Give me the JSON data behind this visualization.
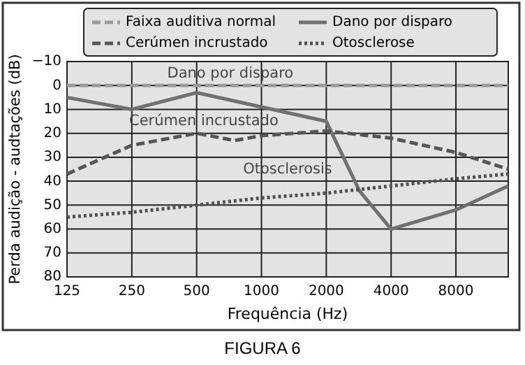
{
  "chart_data": {
    "type": "line",
    "title": "FIGURA 6",
    "xlabel": "Frequência (Hz)",
    "ylabel": "Perda audição - audtações (dB)",
    "log": "x",
    "xlim": [
      125,
      14000
    ],
    "xticks": [
      125,
      250,
      500,
      1000,
      2000,
      4000,
      8000
    ],
    "ylim": [
      80,
      -10
    ],
    "yticks": [
      -10,
      0,
      10,
      20,
      30,
      40,
      50,
      60,
      70,
      80
    ],
    "grid": true,
    "legend": "top",
    "marker": "none",
    "series": [
      {
        "name": "Faixa auditiva normal",
        "color": "#9a9a9a",
        "line_style": "dashed",
        "x": [
          125,
          14000
        ],
        "values": [
          0,
          0
        ]
      },
      {
        "name": "Dano por disparo",
        "color": "#707070",
        "line_style": "solid",
        "x": [
          125,
          250,
          500,
          1000,
          2000,
          2850,
          4000,
          8000,
          14000
        ],
        "values": [
          5,
          10,
          3,
          9,
          15,
          44,
          60,
          52,
          42
        ]
      },
      {
        "name": "Cerúmen incrustado",
        "color": "#555555",
        "line_style": "dashed",
        "x": [
          125,
          250,
          500,
          750,
          1000,
          2000,
          4000,
          8000,
          14000
        ],
        "values": [
          37,
          25,
          20,
          23,
          21,
          19,
          22,
          28,
          35
        ]
      },
      {
        "name": "Otosclerose",
        "color": "#505050",
        "line_style": "dotted",
        "x": [
          125,
          250,
          500,
          1000,
          2000,
          4000,
          8000,
          14000
        ],
        "values": [
          55,
          53,
          50,
          47,
          45,
          42,
          39,
          37
        ]
      }
    ],
    "annotations": [
      "Dano por disparo",
      "Cerúmen incrustado",
      "Otosclerosis"
    ]
  }
}
